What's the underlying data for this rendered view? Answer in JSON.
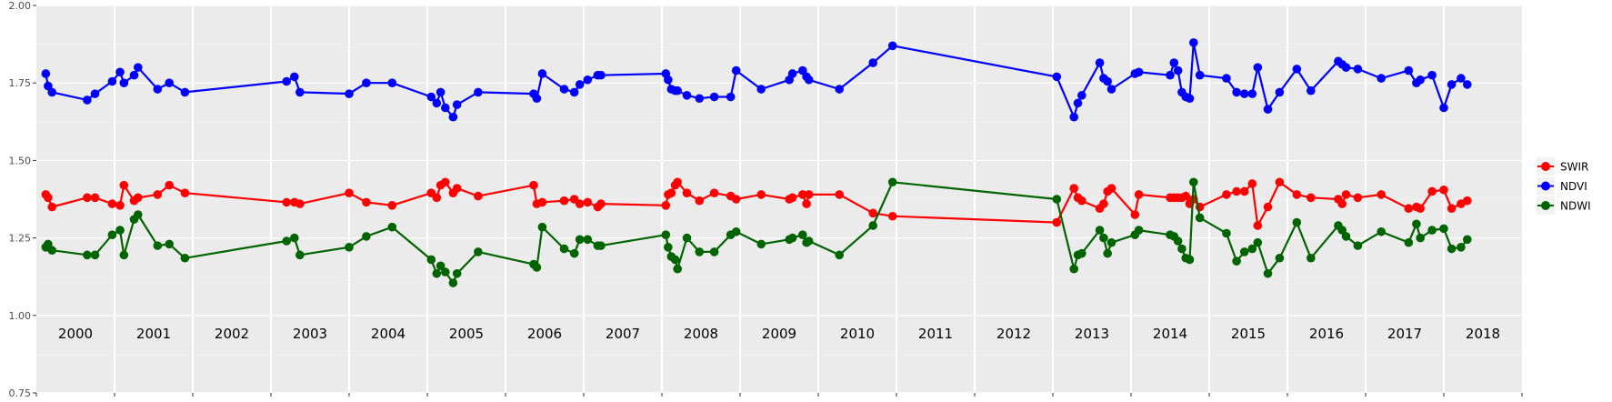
{
  "chart_data": {
    "type": "line",
    "title": "",
    "xlabel": "",
    "ylabel": "",
    "ylim": [
      0.75,
      2.0
    ],
    "xlim": [
      2000.0,
      2019.0
    ],
    "y_ticks": [
      0.75,
      1.0,
      1.25,
      1.5,
      1.75,
      2.0
    ],
    "y_tick_labels": [
      "0.75",
      "1.00",
      "1.25",
      "1.50",
      "1.75",
      "2.00"
    ],
    "year_labels": [
      "2000",
      "2001",
      "2002",
      "2003",
      "2004",
      "2005",
      "2006",
      "2007",
      "2008",
      "2009",
      "2010",
      "2011",
      "2012",
      "2013",
      "2014",
      "2015",
      "2016",
      "2017",
      "2018"
    ],
    "grid": true,
    "legend_position": "right",
    "series": [
      {
        "name": "SWIR",
        "color": "#ff0000",
        "x": [
          2000.12,
          2000.15,
          2000.2,
          2000.65,
          2000.75,
          2000.97,
          2001.07,
          2001.12,
          2001.25,
          2001.3,
          2001.55,
          2001.7,
          2001.9,
          2003.2,
          2003.3,
          2003.37,
          2004.0,
          2004.22,
          2004.55,
          2005.05,
          2005.12,
          2005.17,
          2005.23,
          2005.33,
          2005.38,
          2005.65,
          2006.36,
          2006.4,
          2006.47,
          2006.75,
          2006.88,
          2006.95,
          2007.05,
          2007.18,
          2007.22,
          2008.05,
          2008.08,
          2008.12,
          2008.17,
          2008.2,
          2008.32,
          2008.48,
          2008.67,
          2008.88,
          2008.95,
          2009.27,
          2009.63,
          2009.67,
          2009.8,
          2009.85,
          2009.88,
          2010.27,
          2010.7,
          2010.95,
          2013.05,
          2013.27,
          2013.32,
          2013.37,
          2013.6,
          2013.65,
          2013.7,
          2013.75,
          2014.05,
          2014.1,
          2014.5,
          2014.55,
          2014.6,
          2014.65,
          2014.7,
          2014.75,
          2014.8,
          2014.88,
          2015.22,
          2015.35,
          2015.45,
          2015.55,
          2015.62,
          2015.75,
          2015.9,
          2016.12,
          2016.3,
          2016.65,
          2016.7,
          2016.75,
          2016.9,
          2017.2,
          2017.55,
          2017.65,
          2017.7,
          2017.85,
          2018.0,
          2018.1,
          2018.22,
          2018.3
        ],
        "values": [
          1.39,
          1.38,
          1.35,
          1.38,
          1.38,
          1.36,
          1.355,
          1.42,
          1.37,
          1.38,
          1.39,
          1.42,
          1.395,
          1.365,
          1.365,
          1.36,
          1.395,
          1.365,
          1.355,
          1.395,
          1.38,
          1.42,
          1.43,
          1.395,
          1.41,
          1.385,
          1.42,
          1.36,
          1.365,
          1.37,
          1.375,
          1.36,
          1.365,
          1.35,
          1.36,
          1.355,
          1.39,
          1.395,
          1.42,
          1.43,
          1.395,
          1.37,
          1.395,
          1.385,
          1.375,
          1.39,
          1.375,
          1.38,
          1.39,
          1.36,
          1.39,
          1.39,
          1.33,
          1.32,
          1.3,
          1.41,
          1.38,
          1.37,
          1.345,
          1.36,
          1.4,
          1.41,
          1.325,
          1.39,
          1.38,
          1.38,
          1.38,
          1.38,
          1.385,
          1.36,
          1.375,
          1.35,
          1.39,
          1.4,
          1.4,
          1.425,
          1.29,
          1.35,
          1.43,
          1.39,
          1.38,
          1.375,
          1.36,
          1.39,
          1.38,
          1.39,
          1.345,
          1.35,
          1.345,
          1.4,
          1.405,
          1.345,
          1.36,
          1.37
        ]
      },
      {
        "name": "NDVI",
        "color": "#0000ff",
        "x": [
          2000.12,
          2000.15,
          2000.2,
          2000.65,
          2000.75,
          2000.97,
          2001.07,
          2001.12,
          2001.25,
          2001.3,
          2001.55,
          2001.7,
          2001.9,
          2003.2,
          2003.3,
          2003.37,
          2004.0,
          2004.22,
          2004.55,
          2005.05,
          2005.12,
          2005.17,
          2005.23,
          2005.33,
          2005.38,
          2005.65,
          2006.36,
          2006.4,
          2006.47,
          2006.75,
          2006.88,
          2006.95,
          2007.05,
          2007.18,
          2007.22,
          2008.05,
          2008.08,
          2008.12,
          2008.17,
          2008.2,
          2008.32,
          2008.48,
          2008.67,
          2008.88,
          2008.95,
          2009.27,
          2009.63,
          2009.67,
          2009.8,
          2009.85,
          2009.88,
          2010.27,
          2010.7,
          2010.95,
          2013.05,
          2013.27,
          2013.32,
          2013.37,
          2013.6,
          2013.65,
          2013.7,
          2013.75,
          2014.05,
          2014.1,
          2014.5,
          2014.55,
          2014.6,
          2014.65,
          2014.7,
          2014.75,
          2014.8,
          2014.88,
          2015.22,
          2015.35,
          2015.45,
          2015.55,
          2015.62,
          2015.75,
          2015.9,
          2016.12,
          2016.3,
          2016.65,
          2016.7,
          2016.75,
          2016.9,
          2017.2,
          2017.55,
          2017.65,
          2017.7,
          2017.85,
          2018.0,
          2018.1,
          2018.22,
          2018.3
        ],
        "values": [
          1.78,
          1.74,
          1.72,
          1.695,
          1.715,
          1.755,
          1.785,
          1.75,
          1.775,
          1.8,
          1.73,
          1.75,
          1.72,
          1.755,
          1.77,
          1.72,
          1.715,
          1.75,
          1.75,
          1.705,
          1.685,
          1.72,
          1.67,
          1.64,
          1.68,
          1.72,
          1.715,
          1.7,
          1.78,
          1.73,
          1.72,
          1.745,
          1.76,
          1.775,
          1.775,
          1.78,
          1.76,
          1.73,
          1.725,
          1.725,
          1.71,
          1.7,
          1.705,
          1.705,
          1.79,
          1.73,
          1.76,
          1.78,
          1.79,
          1.77,
          1.76,
          1.73,
          1.815,
          1.87,
          1.77,
          1.64,
          1.685,
          1.71,
          1.815,
          1.765,
          1.755,
          1.73,
          1.78,
          1.785,
          1.775,
          1.815,
          1.79,
          1.72,
          1.705,
          1.7,
          1.88,
          1.775,
          1.765,
          1.72,
          1.715,
          1.715,
          1.8,
          1.665,
          1.72,
          1.795,
          1.725,
          1.82,
          1.81,
          1.8,
          1.795,
          1.765,
          1.79,
          1.75,
          1.76,
          1.775,
          1.67,
          1.745,
          1.765,
          1.745
        ]
      },
      {
        "name": "NDWI",
        "color": "#006400",
        "x": [
          2000.12,
          2000.15,
          2000.2,
          2000.65,
          2000.75,
          2000.97,
          2001.07,
          2001.12,
          2001.25,
          2001.3,
          2001.55,
          2001.7,
          2001.9,
          2003.2,
          2003.3,
          2003.37,
          2004.0,
          2004.22,
          2004.55,
          2005.05,
          2005.12,
          2005.17,
          2005.23,
          2005.33,
          2005.38,
          2005.65,
          2006.36,
          2006.4,
          2006.47,
          2006.75,
          2006.88,
          2006.95,
          2007.05,
          2007.18,
          2007.22,
          2008.05,
          2008.08,
          2008.12,
          2008.17,
          2008.2,
          2008.32,
          2008.48,
          2008.67,
          2008.88,
          2008.95,
          2009.27,
          2009.63,
          2009.67,
          2009.8,
          2009.85,
          2009.88,
          2010.27,
          2010.7,
          2010.95,
          2013.05,
          2013.27,
          2013.32,
          2013.37,
          2013.6,
          2013.65,
          2013.7,
          2013.75,
          2014.05,
          2014.1,
          2014.5,
          2014.55,
          2014.6,
          2014.65,
          2014.7,
          2014.75,
          2014.8,
          2014.88,
          2015.22,
          2015.35,
          2015.45,
          2015.55,
          2015.62,
          2015.75,
          2015.9,
          2016.12,
          2016.3,
          2016.65,
          2016.7,
          2016.75,
          2016.9,
          2017.2,
          2017.55,
          2017.65,
          2017.7,
          2017.85,
          2018.0,
          2018.1,
          2018.22,
          2018.3
        ],
        "values": [
          1.22,
          1.23,
          1.21,
          1.195,
          1.195,
          1.26,
          1.275,
          1.195,
          1.31,
          1.325,
          1.225,
          1.23,
          1.185,
          1.24,
          1.25,
          1.195,
          1.22,
          1.255,
          1.285,
          1.18,
          1.135,
          1.16,
          1.14,
          1.105,
          1.135,
          1.205,
          1.165,
          1.155,
          1.285,
          1.215,
          1.2,
          1.245,
          1.245,
          1.225,
          1.225,
          1.26,
          1.22,
          1.19,
          1.18,
          1.15,
          1.25,
          1.205,
          1.205,
          1.26,
          1.27,
          1.23,
          1.245,
          1.25,
          1.26,
          1.235,
          1.24,
          1.195,
          1.29,
          1.43,
          1.375,
          1.15,
          1.195,
          1.2,
          1.275,
          1.25,
          1.2,
          1.235,
          1.26,
          1.275,
          1.26,
          1.255,
          1.24,
          1.215,
          1.185,
          1.18,
          1.43,
          1.315,
          1.265,
          1.175,
          1.205,
          1.215,
          1.235,
          1.135,
          1.185,
          1.3,
          1.185,
          1.29,
          1.275,
          1.255,
          1.225,
          1.27,
          1.235,
          1.295,
          1.25,
          1.275,
          1.28,
          1.215,
          1.22,
          1.245
        ]
      }
    ]
  }
}
